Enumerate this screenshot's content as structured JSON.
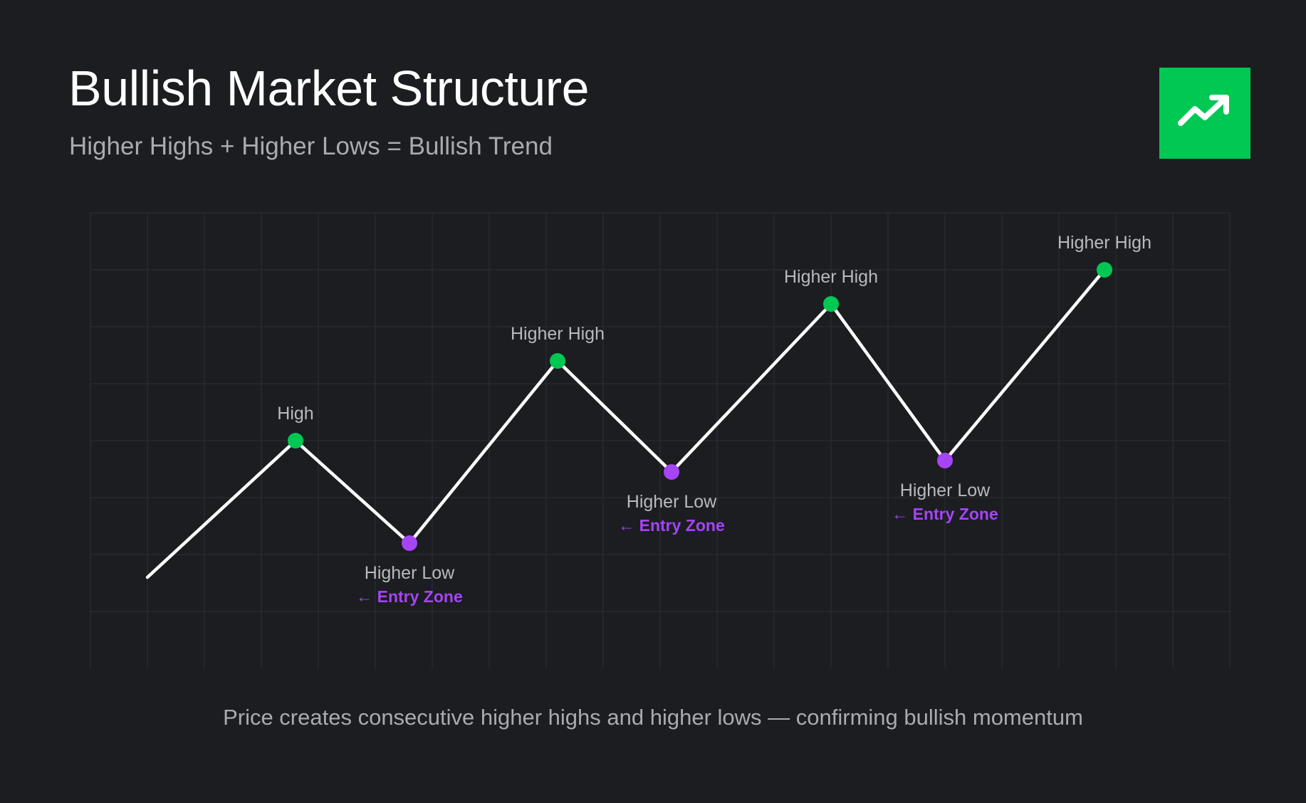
{
  "header": {
    "title": "Bullish Market Structure",
    "subtitle": "Higher Highs + Higher Lows = Bullish Trend",
    "badge_icon": "trending-up-icon"
  },
  "caption": "Price creates consecutive higher highs and higher lows — confirming bullish momentum",
  "colors": {
    "background": "#1b1d21",
    "grid": "#2b2f35",
    "line": "#ffffff",
    "high": "#00c853",
    "low": "#a545f5",
    "label": "#b8babf",
    "entry": "#a545f5",
    "badge": "#00c853"
  },
  "chart_data": {
    "type": "line",
    "points": [
      {
        "x": 1,
        "y": 1.6,
        "kind": "start",
        "label": "",
        "entry": ""
      },
      {
        "x": 3.6,
        "y": 4.0,
        "kind": "high",
        "label": "High",
        "entry": ""
      },
      {
        "x": 5.6,
        "y": 2.2,
        "kind": "low",
        "label": "Higher Low",
        "entry": "← Entry Zone"
      },
      {
        "x": 8.2,
        "y": 5.4,
        "kind": "high",
        "label": "Higher High",
        "entry": ""
      },
      {
        "x": 10.2,
        "y": 3.45,
        "kind": "low",
        "label": "Higher Low",
        "entry": "← Entry Zone"
      },
      {
        "x": 13.0,
        "y": 6.4,
        "kind": "high",
        "label": "Higher High",
        "entry": ""
      },
      {
        "x": 15.0,
        "y": 3.65,
        "kind": "low",
        "label": "Higher Low",
        "entry": "← Entry Zone"
      },
      {
        "x": 17.8,
        "y": 7.0,
        "kind": "high",
        "label": "Higher High",
        "entry": ""
      }
    ],
    "xlim": [
      0,
      20
    ],
    "ylim": [
      0,
      8
    ],
    "grid": true
  }
}
